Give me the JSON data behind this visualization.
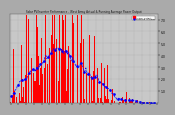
{
  "title": "Solar PV/Inverter Performance - West Array Actual & Running Average Power Output",
  "background_color": "#aaaaaa",
  "plot_bg": "#c8c8c8",
  "bar_color": "#ff0000",
  "avg_color": "#0000ff",
  "legend_actual": "Actual Output",
  "legend_avg": "Running Average",
  "ylim": [
    0,
    7.5
  ],
  "yticks": [
    1.0,
    2.0,
    3.0,
    4.0,
    5.0,
    6.0,
    7.0
  ],
  "peak_kw": 7.0
}
